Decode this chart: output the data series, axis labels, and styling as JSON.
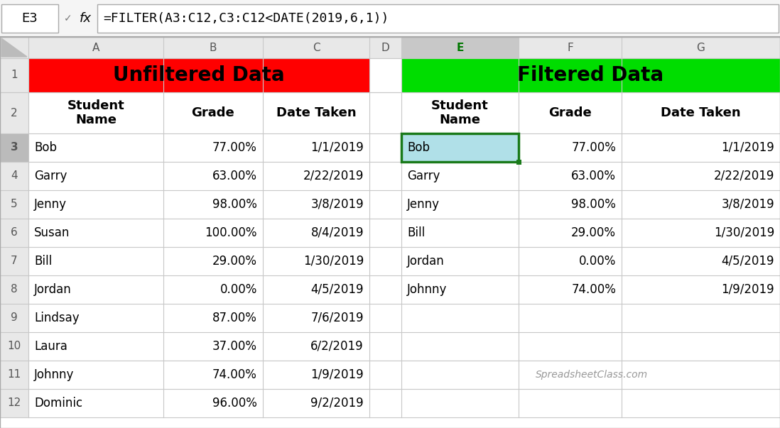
{
  "formula_bar_cell": "E3",
  "formula_bar_formula": "=FILTER(A3:C12,C3:C12<DATE(2019,6,1))",
  "col_headers": [
    "A",
    "B",
    "C",
    "D",
    "E",
    "F",
    "G"
  ],
  "unfiltered_header": "Unfiltered Data",
  "filtered_header": "Filtered Data",
  "unfiltered_header_bg": "#FF0000",
  "filtered_header_bg": "#00DD00",
  "header_text_color": "#000000",
  "col_subheaders": [
    "Student\nName",
    "Grade",
    "Date Taken"
  ],
  "unfiltered_data": [
    [
      "Bob",
      "77.00%",
      "1/1/2019"
    ],
    [
      "Garry",
      "63.00%",
      "2/22/2019"
    ],
    [
      "Jenny",
      "98.00%",
      "3/8/2019"
    ],
    [
      "Susan",
      "100.00%",
      "8/4/2019"
    ],
    [
      "Bill",
      "29.00%",
      "1/30/2019"
    ],
    [
      "Jordan",
      "0.00%",
      "4/5/2019"
    ],
    [
      "Lindsay",
      "87.00%",
      "7/6/2019"
    ],
    [
      "Laura",
      "37.00%",
      "6/2/2019"
    ],
    [
      "Johnny",
      "74.00%",
      "1/9/2019"
    ],
    [
      "Dominic",
      "96.00%",
      "9/2/2019"
    ]
  ],
  "filtered_data": [
    [
      "Bob",
      "77.00%",
      "1/1/2019"
    ],
    [
      "Garry",
      "63.00%",
      "2/22/2019"
    ],
    [
      "Jenny",
      "98.00%",
      "3/8/2019"
    ],
    [
      "Bill",
      "29.00%",
      "1/30/2019"
    ],
    [
      "Jordan",
      "0.00%",
      "4/5/2019"
    ],
    [
      "Johnny",
      "74.00%",
      "1/9/2019"
    ]
  ],
  "watermark": "SpreadsheetClass.com",
  "bg_color": "#FFFFFF",
  "row_num_bg": "#E8E8E8",
  "col_header_bg": "#E8E8E8",
  "selected_col_header_bg": "#C8C8C8",
  "selected_cell_bg": "#B0E0E8",
  "selected_cell_border": "#1A7A1A",
  "grid_line_color": "#C8C8C8",
  "row_num_text_color": "#555555",
  "col_header_e_text_color": "#007700",
  "data_text_color": "#000000",
  "formula_bar_bg": "#F5F5F5",
  "unfilt_header_font_size": 20,
  "filt_header_font_size": 20,
  "data_font_size": 12,
  "subheader_font_size": 13,
  "row_num_font_size": 11,
  "col_header_font_size": 11,
  "formula_font_size": 13,
  "watermark_font_size": 10
}
